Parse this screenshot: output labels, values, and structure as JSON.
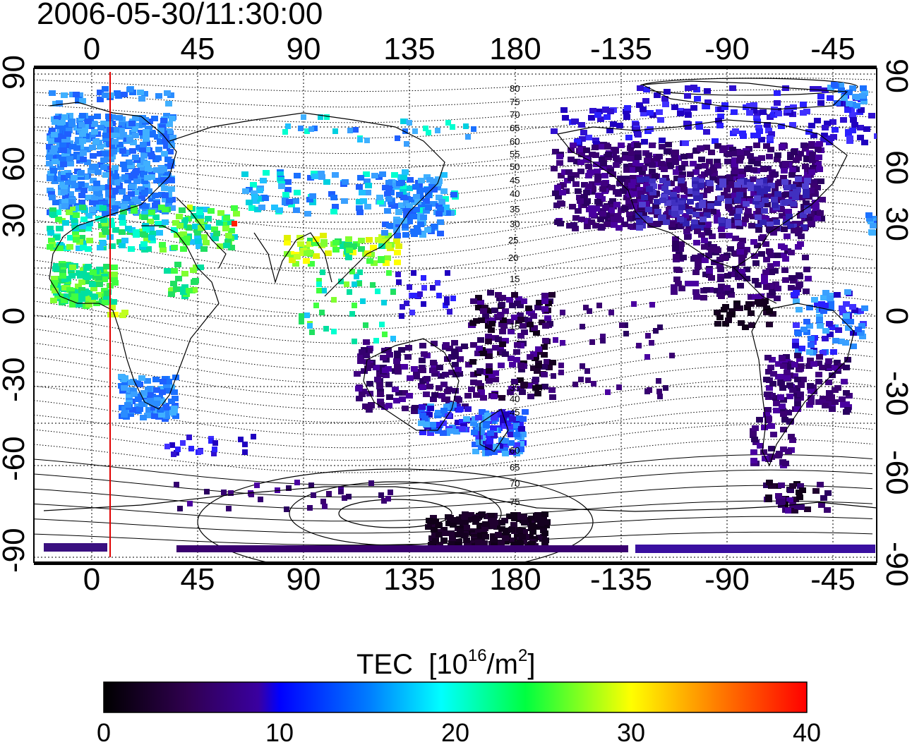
{
  "title": "2006-05-30/11:30:00",
  "map": {
    "longitude_ticks_top": [
      "0",
      "45",
      "90",
      "135",
      "180",
      "-135",
      "-90",
      "-45"
    ],
    "longitude_ticks_bottom": [
      "0",
      "45",
      "90",
      "135",
      "180",
      "-135",
      "-90",
      "-45"
    ],
    "latitude_ticks_left": [
      "90",
      "60",
      "30",
      "0",
      "-30",
      "-60",
      "-90"
    ],
    "latitude_ticks_right": [
      "90",
      "60",
      "30",
      "0",
      "-30",
      "-60",
      "-90"
    ],
    "contour_labels": [
      "80",
      "75",
      "70",
      "65",
      "60",
      "55",
      "50",
      "45",
      "40",
      "35",
      "30",
      "25",
      "20",
      "15",
      "15",
      "35",
      "40",
      "45",
      "60",
      "65",
      "70",
      "75"
    ],
    "terminator_line_color": "#e00000"
  },
  "colorbar": {
    "title": "TEC",
    "units_prefix": "[10",
    "units_exp": "16",
    "units_mid": "/m",
    "units_exp2": "2",
    "units_suffix": "]",
    "ticks": [
      "0",
      "10",
      "20",
      "30",
      "40"
    ],
    "range": [
      0,
      40
    ],
    "colors": [
      "#000000",
      "#3a0070",
      "#0000ff",
      "#00ffff",
      "#00ff00",
      "#ffff00",
      "#ff8000",
      "#ff0000"
    ]
  }
}
